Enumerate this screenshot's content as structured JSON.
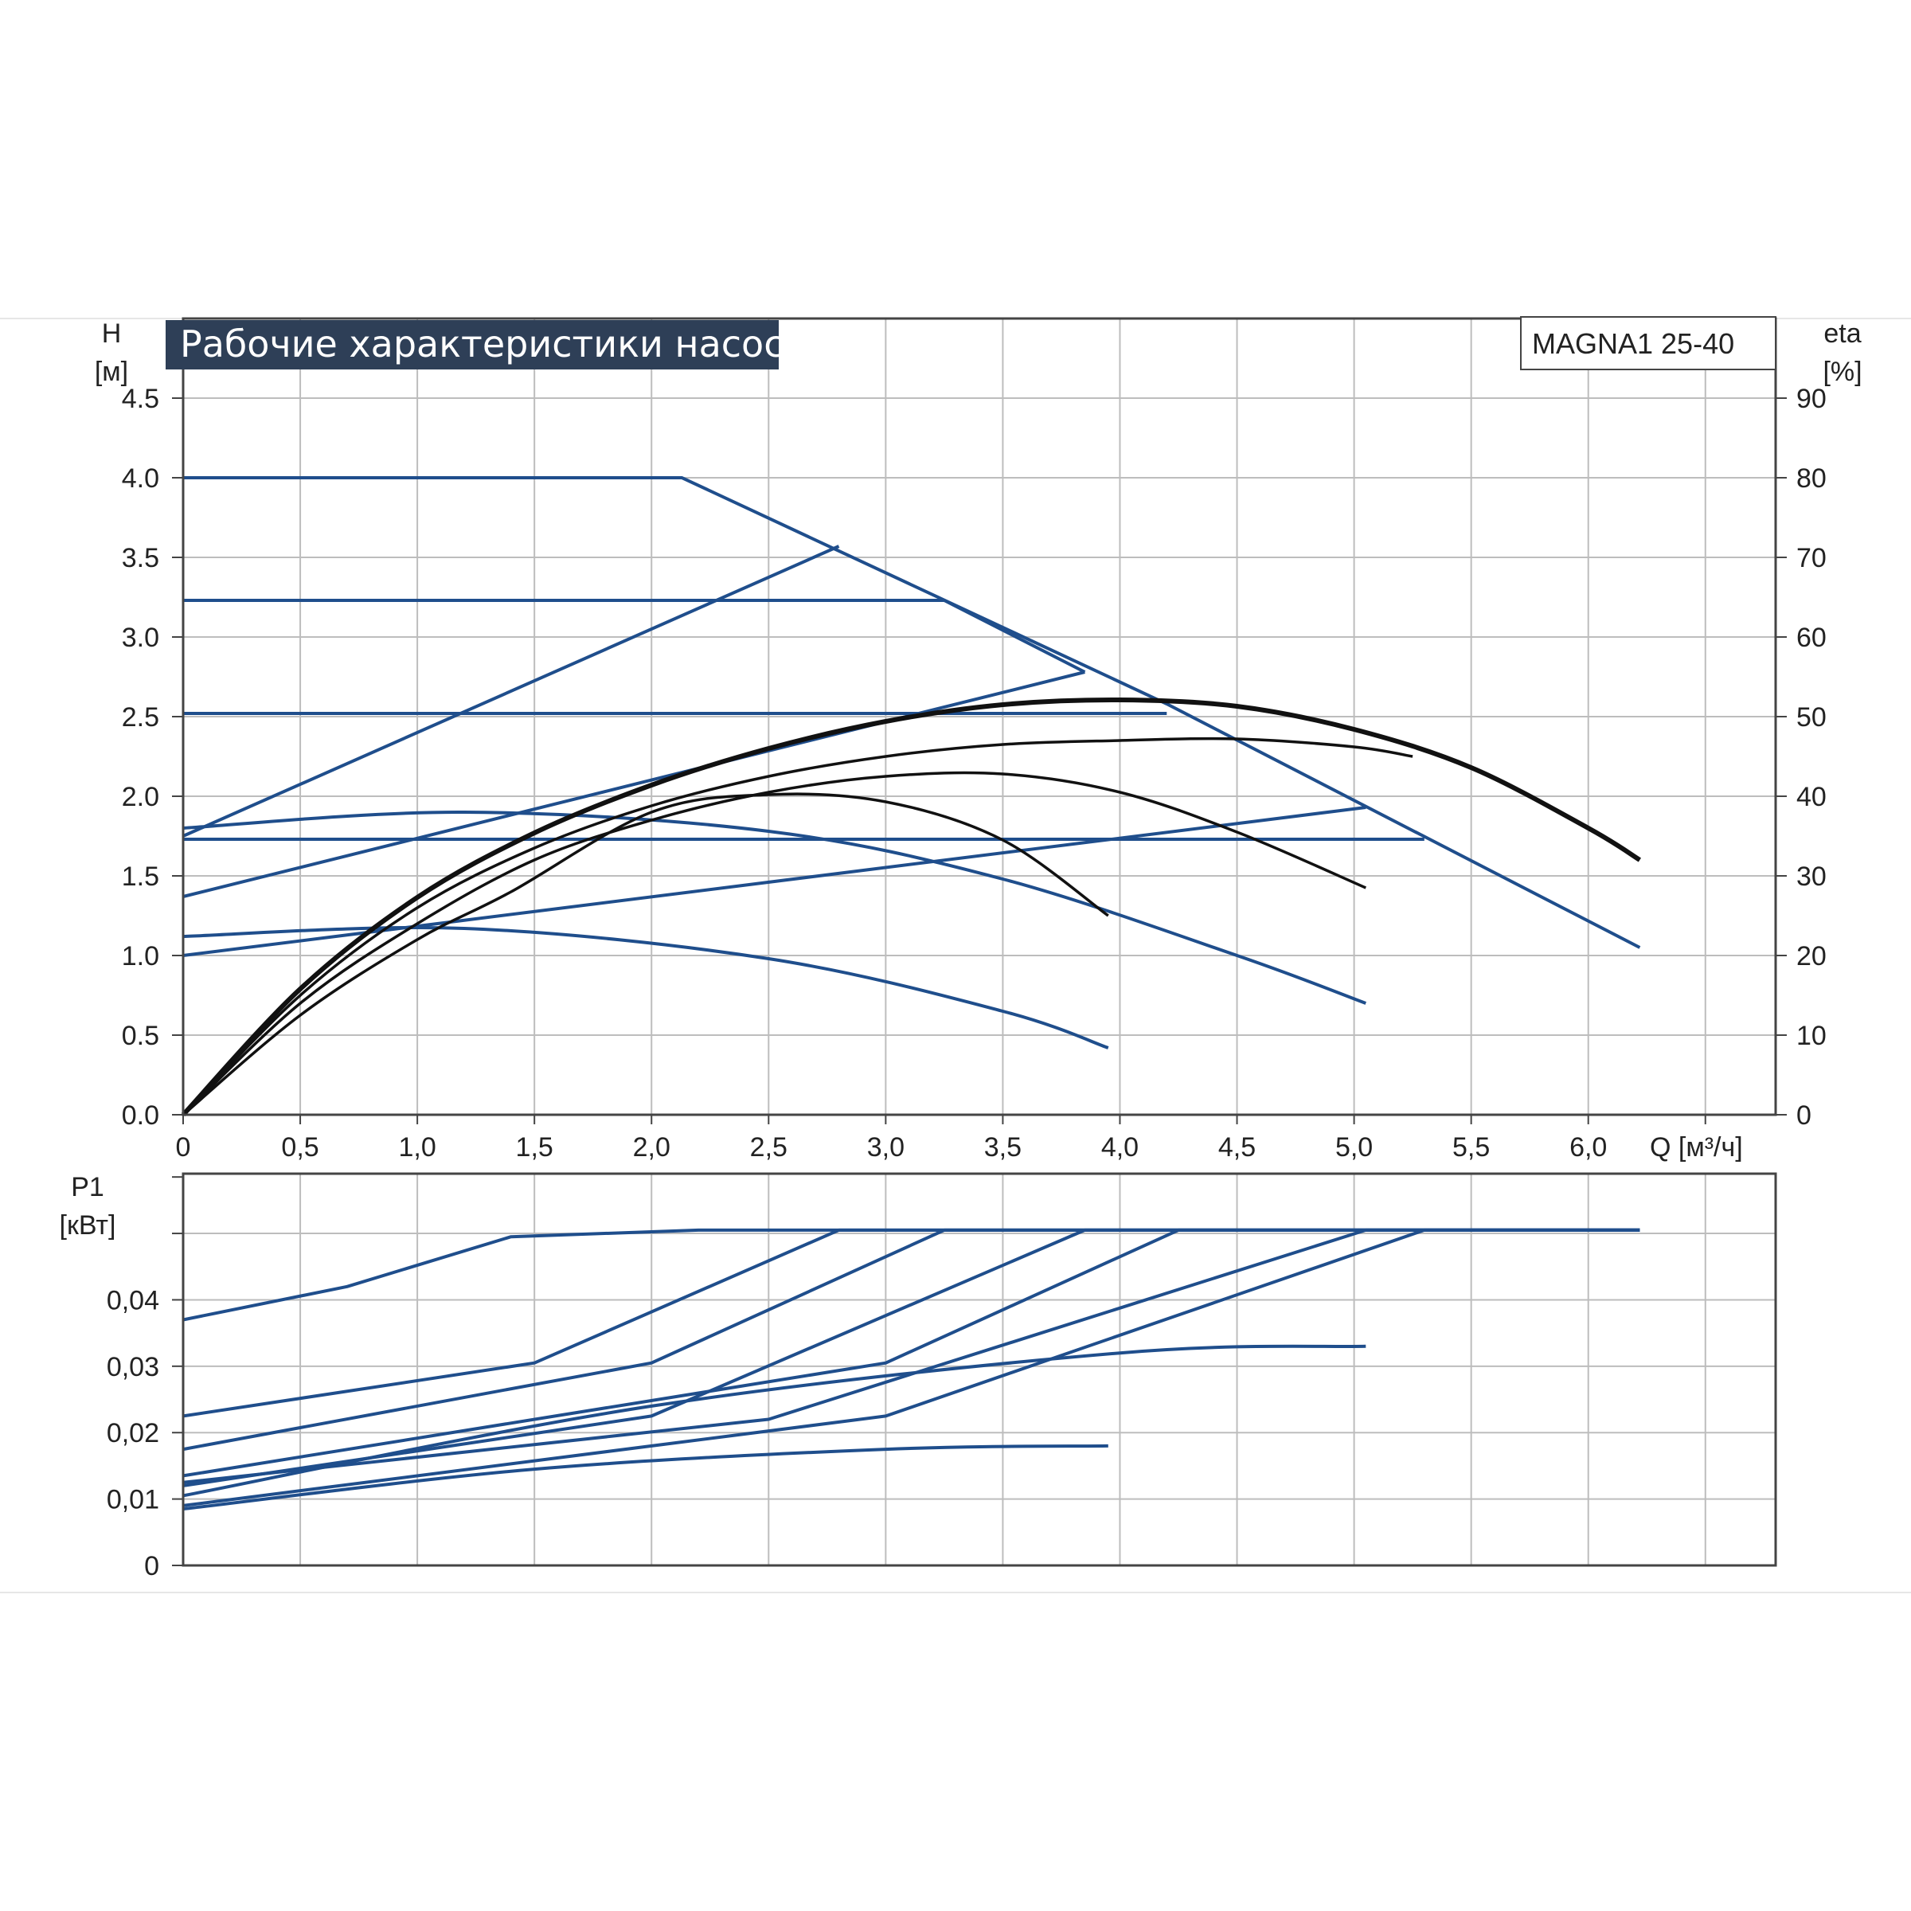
{
  "colors": {
    "blue": "#1f4e8c",
    "black": "#111111",
    "grid": "#bdbdbd",
    "frame": "#444444",
    "title_bg": "#2e3f57"
  },
  "chart_data": [
    {
      "type": "line",
      "title": "Рабочие характеристики насоса",
      "model": "MAGNA1 25-40",
      "xlabel": "Q [м³/ч]",
      "ylabel_main": "H",
      "ylabel_unit": "[м]",
      "y2label_main": "eta",
      "y2label_unit": "[%]",
      "xlim": [
        0,
        6.8
      ],
      "ylim": [
        0,
        5.0
      ],
      "y2lim": [
        0,
        100
      ],
      "grid": true,
      "x_ticks": [
        "0",
        "0,5",
        "1,0",
        "1,5",
        "2,0",
        "2,5",
        "3,0",
        "3,5",
        "4,0",
        "4,5",
        "5,0",
        "5,5",
        "6,0"
      ],
      "x_tick_values": [
        0,
        0.5,
        1.0,
        1.5,
        2.0,
        2.5,
        3.0,
        3.5,
        4.0,
        4.5,
        5.0,
        5.5,
        6.0
      ],
      "y_ticks": [
        "0.0",
        "0.5",
        "1.0",
        "1.5",
        "2.0",
        "2.5",
        "3.0",
        "3.5",
        "4.0",
        "4.5"
      ],
      "y_tick_values": [
        0,
        0.5,
        1.0,
        1.5,
        2.0,
        2.5,
        3.0,
        3.5,
        4.0,
        4.5
      ],
      "y2_ticks": [
        "0",
        "10",
        "20",
        "30",
        "40",
        "50",
        "60",
        "70",
        "80",
        "90"
      ],
      "head_curves": [
        {
          "x": [
            0,
            2.13,
            4.2,
            6.22
          ],
          "y": [
            4.0,
            4.0,
            2.58,
            1.05
          ]
        },
        {
          "x": [
            0,
            3.25,
            3.85
          ],
          "y": [
            3.23,
            3.23,
            2.78
          ]
        },
        {
          "x": [
            0,
            4.2
          ],
          "y": [
            2.52,
            2.52
          ]
        },
        {
          "x": [
            0,
            5.3
          ],
          "y": [
            1.73,
            1.73
          ]
        },
        {
          "x": [
            0,
            2.8
          ],
          "y": [
            1.75,
            3.57
          ]
        },
        {
          "x": [
            0,
            3.85
          ],
          "y": [
            1.37,
            2.78
          ]
        },
        {
          "x": [
            0,
            5.05
          ],
          "y": [
            1.0,
            1.93
          ]
        },
        {
          "x": [
            0,
            1.2,
            2.5,
            3.5,
            4.5,
            5.05
          ],
          "y": [
            1.8,
            1.9,
            1.78,
            1.48,
            1.0,
            0.7
          ]
        },
        {
          "x": [
            0,
            1.2,
            2.5,
            3.5,
            3.95
          ],
          "y": [
            1.12,
            1.17,
            0.98,
            0.65,
            0.42
          ]
        }
      ],
      "efficiency_curves": [
        {
          "x": [
            0,
            0.5,
            1.0,
            1.5,
            2.0,
            2.5,
            3.0,
            3.5,
            4.0,
            4.5,
            5.0,
            5.5,
            6.0,
            6.22
          ],
          "y": [
            0,
            15.8,
            27.3,
            35.4,
            41.4,
            46.0,
            49.4,
            51.5,
            52.1,
            51.3,
            48.4,
            43.6,
            36.0,
            32.0
          ]
        },
        {
          "x": [
            0,
            0.5,
            1.0,
            1.5,
            2.0,
            2.5,
            3.0,
            3.5,
            4.0,
            4.5,
            5.0,
            5.25
          ],
          "y": [
            0,
            15.0,
            26.0,
            33.5,
            38.8,
            42.5,
            45.0,
            46.5,
            47.0,
            47.2,
            46.2,
            45.0
          ]
        },
        {
          "x": [
            0,
            0.5,
            1.0,
            1.5,
            2.0,
            2.5,
            3.0,
            3.5,
            4.0,
            4.5,
            5.05
          ],
          "y": [
            0,
            14.0,
            24.0,
            32.0,
            37.0,
            40.5,
            42.5,
            42.8,
            40.5,
            35.5,
            28.5
          ]
        },
        {
          "x": [
            0,
            0.5,
            1.0,
            1.4,
            2.0,
            2.5,
            3.0,
            3.5,
            3.95
          ],
          "y": [
            0,
            12.5,
            22.0,
            28.0,
            38.0,
            40.2,
            39.3,
            34.5,
            25.0
          ]
        }
      ]
    },
    {
      "type": "line",
      "ylabel_main": "P1",
      "ylabel_unit": "[кВт]",
      "xlim": [
        0,
        6.8
      ],
      "ylim": [
        0,
        0.059
      ],
      "grid": true,
      "y_ticks": [
        "0",
        "0,01",
        "0,02",
        "0,03",
        "0,04"
      ],
      "y_tick_values": [
        0,
        0.01,
        0.02,
        0.03,
        0.04
      ],
      "power_curves": [
        {
          "x": [
            0,
            0.7,
            1.4,
            2.2,
            6.22
          ],
          "y": [
            0.037,
            0.042,
            0.0495,
            0.0505,
            0.0505
          ]
        },
        {
          "x": [
            0,
            1.5,
            2.8,
            6.22
          ],
          "y": [
            0.0225,
            0.0305,
            0.0505,
            0.0505
          ]
        },
        {
          "x": [
            0,
            2.0,
            3.25,
            6.22
          ],
          "y": [
            0.0175,
            0.0305,
            0.0505,
            0.0505
          ]
        },
        {
          "x": [
            0,
            2.0,
            3.85,
            6.22
          ],
          "y": [
            0.012,
            0.0225,
            0.0505,
            0.0505
          ]
        },
        {
          "x": [
            0,
            3.0,
            4.25,
            6.22
          ],
          "y": [
            0.0135,
            0.0305,
            0.0505,
            0.0505
          ]
        },
        {
          "x": [
            0,
            2.5,
            5.05,
            6.22
          ],
          "y": [
            0.0125,
            0.022,
            0.0505,
            0.0505
          ]
        },
        {
          "x": [
            0,
            3.0,
            5.3,
            6.22
          ],
          "y": [
            0.009,
            0.0225,
            0.0505,
            0.0505
          ]
        },
        {
          "x": [
            0,
            2.0,
            4.0,
            5.05
          ],
          "y": [
            0.0105,
            0.024,
            0.032,
            0.033
          ]
        },
        {
          "x": [
            0,
            1.5,
            3.0,
            3.95
          ],
          "y": [
            0.0085,
            0.0145,
            0.0175,
            0.018
          ]
        }
      ]
    }
  ]
}
